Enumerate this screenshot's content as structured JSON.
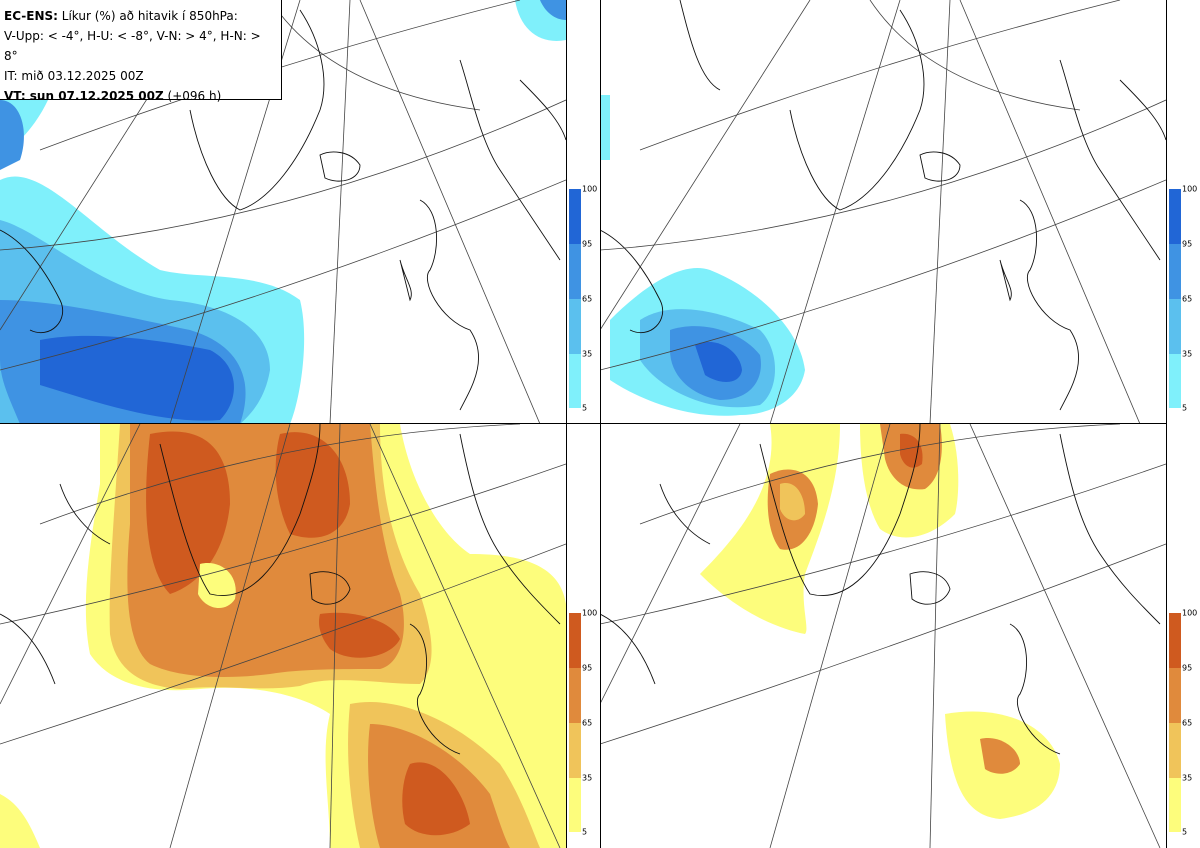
{
  "header": {
    "model": "EC-ENS:",
    "title": "Líkur (%) að hitavik í 850hPa:",
    "thresholds": "V-Upp: < -4°, H-U: < -8°, V-N: > 4°, H-N: > 8°",
    "init_time": "IT: mið 03.12.2025 00Z",
    "valid_label": "VT: sun 07.12.2025 00Z",
    "lead_time": "(+096 h)"
  },
  "colorbars": {
    "cold": {
      "ticks": [
        "100",
        "95",
        "65",
        "35",
        "5"
      ],
      "colors": [
        "#2166d6",
        "#3f93e3",
        "#5bc0ee",
        "#7ff0fb"
      ]
    },
    "warm": {
      "ticks": [
        "100",
        "95",
        "65",
        "35",
        "5"
      ],
      "colors": [
        "#cf5a1f",
        "#e08a3c",
        "#f0c45a",
        "#fdfd7c"
      ]
    }
  },
  "panels": [
    {
      "id": "upper-left",
      "variable": "cold anomaly < -4°"
    },
    {
      "id": "upper-right",
      "variable": "cold anomaly < -8°"
    },
    {
      "id": "lower-left",
      "variable": "warm anomaly > 4°"
    },
    {
      "id": "lower-right",
      "variable": "warm anomaly > 8°"
    }
  ]
}
